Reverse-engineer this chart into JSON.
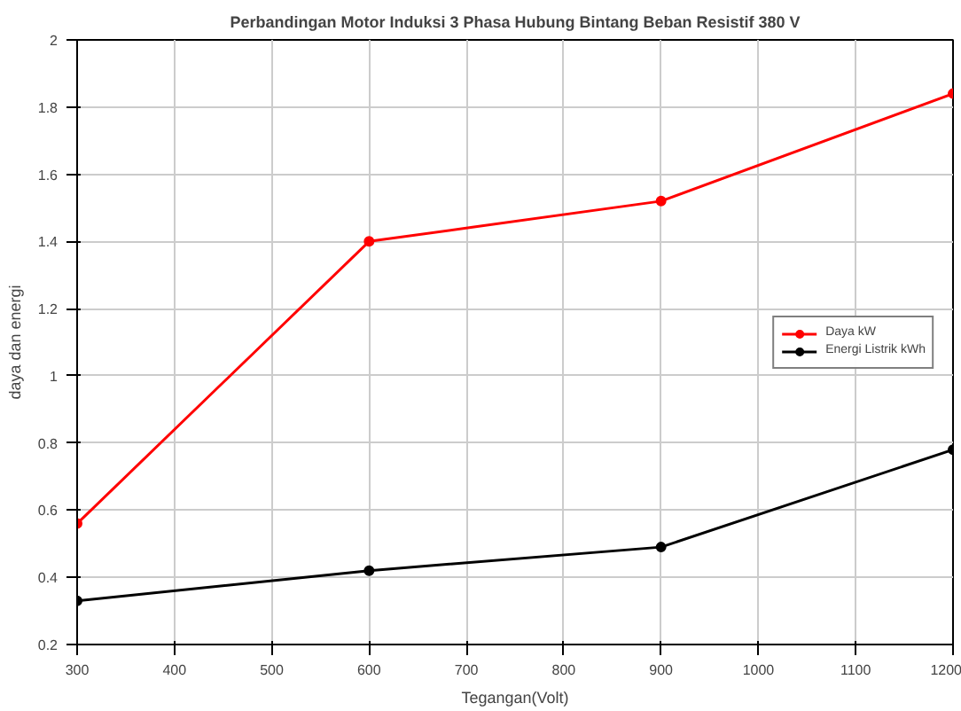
{
  "chart_data": {
    "type": "line",
    "title": "Perbandingan Motor Induksi 3 Phasa Hubung Bintang Beban Resistif 380 V",
    "xlabel": "Tegangan(Volt)",
    "ylabel": "daya dan energi",
    "x": [
      300,
      600,
      900,
      1200
    ],
    "series": [
      {
        "name": "Daya kW",
        "color": "#ff0000",
        "values": [
          0.56,
          1.4,
          1.52,
          1.84
        ]
      },
      {
        "name": "Energi Listrik kWh",
        "color": "#000000",
        "values": [
          0.33,
          0.42,
          0.49,
          0.78
        ]
      }
    ],
    "xlim": [
      300,
      1200
    ],
    "ylim": [
      0.2,
      2
    ],
    "xticks": [
      300,
      400,
      500,
      600,
      700,
      800,
      900,
      1000,
      1100,
      1200
    ],
    "yticks": [
      0.2,
      0.4,
      0.6,
      0.8,
      1,
      1.2,
      1.4,
      1.6,
      1.8,
      2
    ],
    "grid": true,
    "legend": "right",
    "marker": "circle",
    "line_style": "solid"
  }
}
